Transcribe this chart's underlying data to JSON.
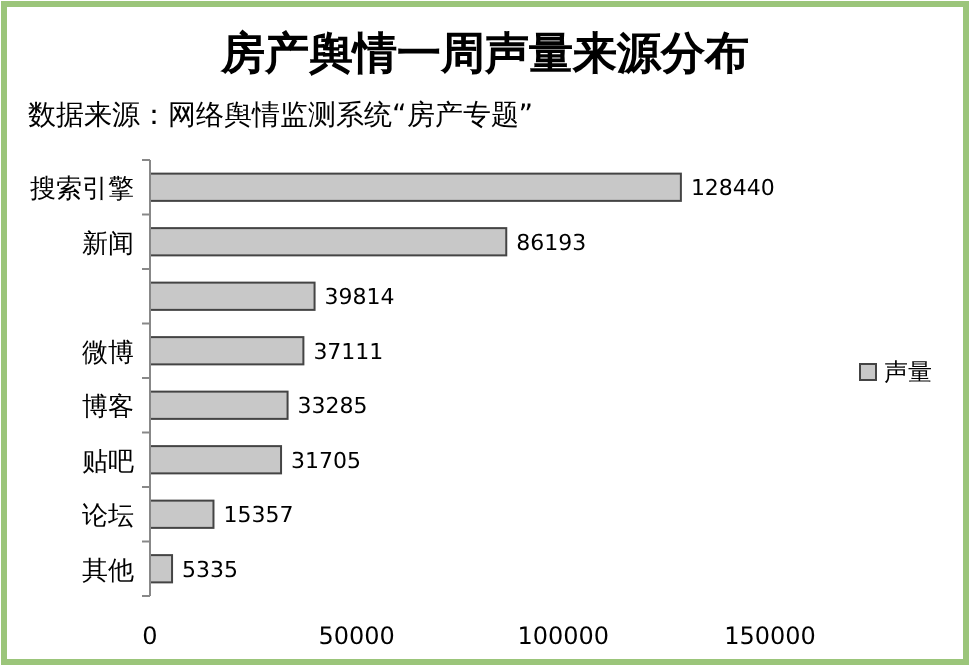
{
  "chart_data": {
    "type": "bar",
    "orientation": "horizontal",
    "title": "房产舆情一周声量来源分布",
    "subtitle": "数据来源：网络舆情监测系统“房产专题”",
    "categories": [
      "搜索引擎",
      "新闻",
      null,
      "微博",
      "博客",
      "贴吧",
      "论坛",
      "其他"
    ],
    "series": [
      {
        "name": "声量",
        "color": "#c8c8c8",
        "values": [
          128440,
          86193,
          39814,
          37111,
          33285,
          31705,
          15357,
          5335
        ]
      }
    ],
    "xlim": [
      0,
      150000
    ],
    "xticks": [
      0,
      50000,
      100000,
      150000
    ],
    "grid": false,
    "legend": "right",
    "data_labels": true
  }
}
